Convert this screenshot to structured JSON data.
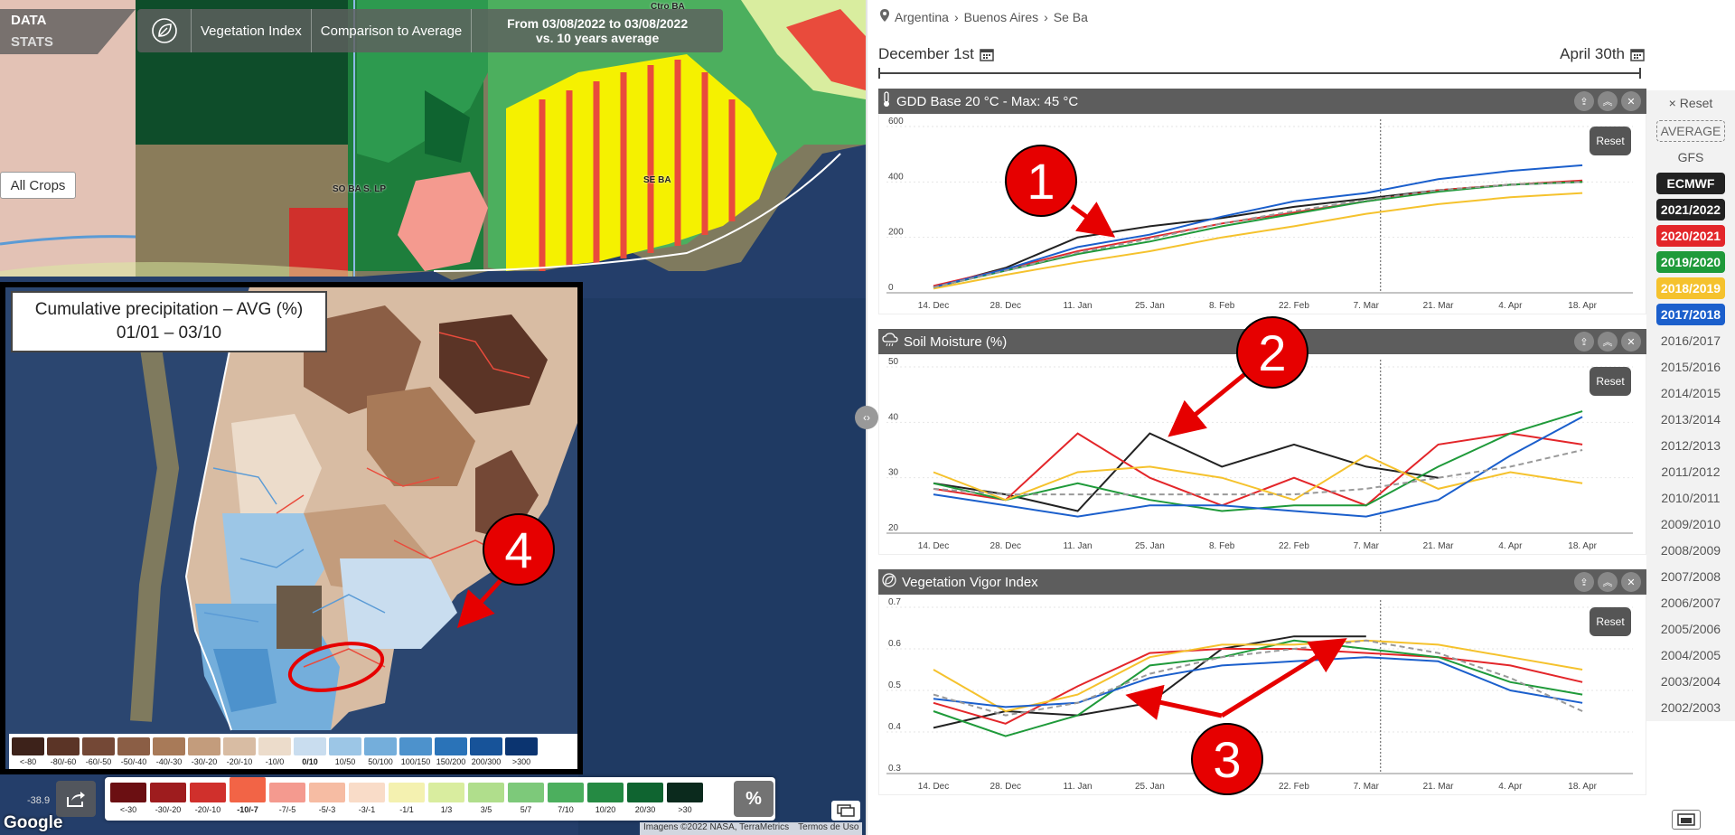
{
  "app": {
    "logo_top": "DATA",
    "logo_bottom": "STATS"
  },
  "topbar": {
    "icon": "leaf-icon",
    "items": [
      "Vegetation Index",
      "Comparison to Average"
    ],
    "range_line1": "From 03/08/2022 to 03/08/2022",
    "range_line2": "vs. 10 years average"
  },
  "map": {
    "crop_selector": "All Crops",
    "region_labels": [
      "SO BA S. LP",
      "SE BA",
      "Ctro BA"
    ],
    "coord": "-38.9",
    "google": "Google",
    "attribution": [
      "Imagens ©2022 NASA, TerraMetrics",
      "Termos de Uso"
    ],
    "legend": [
      {
        "label": "<-30",
        "color": "#6b0f12"
      },
      {
        "label": "-30/-20",
        "color": "#9e1c1e"
      },
      {
        "label": "-20/-10",
        "color": "#d0302c"
      },
      {
        "label": "-10/-7",
        "color": "#f26446",
        "selected": true
      },
      {
        "label": "-7/-5",
        "color": "#f49a8f"
      },
      {
        "label": "-5/-3",
        "color": "#f6bca3"
      },
      {
        "label": "-3/-1",
        "color": "#f9dcc8"
      },
      {
        "label": "-1/1",
        "color": "#f4f1b0"
      },
      {
        "label": "1/3",
        "color": "#d9ed9f"
      },
      {
        "label": "3/5",
        "color": "#b0de8c"
      },
      {
        "label": "5/7",
        "color": "#7dc97a"
      },
      {
        "label": "7/10",
        "color": "#4caf5e"
      },
      {
        "label": "10/20",
        "color": "#258a43"
      },
      {
        "label": "20/30",
        "color": "#0f6430"
      },
      {
        "label": ">30",
        "color": "#0b2a1d"
      }
    ],
    "percent_button": "%"
  },
  "inset": {
    "title_line1": "Cumulative precipitation – AVG (%)",
    "title_line2": "01/01 – 03/10",
    "legend": [
      {
        "label": "<-80",
        "color": "#3d221a"
      },
      {
        "label": "-80/-60",
        "color": "#5b3426"
      },
      {
        "label": "-60/-50",
        "color": "#744836"
      },
      {
        "label": "-50/-40",
        "color": "#8b5e45"
      },
      {
        "label": "-40/-30",
        "color": "#a87a58"
      },
      {
        "label": "-30/-20",
        "color": "#c39c7c"
      },
      {
        "label": "-20/-10",
        "color": "#d8bca3"
      },
      {
        "label": "-10/0",
        "color": "#ecdccb"
      },
      {
        "label": "0/10",
        "color": "#c9ddef",
        "selected": true
      },
      {
        "label": "10/50",
        "color": "#9cc6e6"
      },
      {
        "label": "50/100",
        "color": "#74aedb"
      },
      {
        "label": "100/150",
        "color": "#4d92cc"
      },
      {
        "label": "150/200",
        "color": "#2a73b8"
      },
      {
        "label": "200/300",
        "color": "#175399"
      },
      {
        "label": ">300",
        "color": "#0b3470"
      }
    ]
  },
  "right": {
    "breadcrumb": [
      "Argentina",
      "Buenos Aires",
      "Se Ba"
    ],
    "date_start": "December 1st",
    "date_end": "April 30th",
    "reset_label": "Reset",
    "panels": [
      {
        "title": "GDD Base 20 °C - Max: 45 °C",
        "icon": "thermometer-icon"
      },
      {
        "title": "Soil Moisture (%)",
        "icon": "rain-cloud-icon"
      },
      {
        "title": "Vegetation Vigor Index",
        "icon": "leaf-icon"
      }
    ],
    "season_reset": "Reset",
    "seasons": [
      {
        "label": "AVERAGE",
        "style": "dashed"
      },
      {
        "label": "GFS",
        "style": "plain"
      },
      {
        "label": "ECMWF",
        "style": "on",
        "color": "#222222"
      },
      {
        "label": "2021/2022",
        "style": "on",
        "color": "#222222"
      },
      {
        "label": "2020/2021",
        "style": "on",
        "color": "#e3262a"
      },
      {
        "label": "2019/2020",
        "style": "on",
        "color": "#1f9a3a"
      },
      {
        "label": "2018/2019",
        "style": "on",
        "color": "#f5c22d"
      },
      {
        "label": "2017/2018",
        "style": "on",
        "color": "#1b5fcc"
      },
      {
        "label": "2016/2017",
        "style": "plain"
      },
      {
        "label": "2015/2016",
        "style": "plain"
      },
      {
        "label": "2014/2015",
        "style": "plain"
      },
      {
        "label": "2013/2014",
        "style": "plain"
      },
      {
        "label": "2012/2013",
        "style": "plain"
      },
      {
        "label": "2011/2012",
        "style": "plain"
      },
      {
        "label": "2010/2011",
        "style": "plain"
      },
      {
        "label": "2009/2010",
        "style": "plain"
      },
      {
        "label": "2008/2009",
        "style": "plain"
      },
      {
        "label": "2007/2008",
        "style": "plain"
      },
      {
        "label": "2006/2007",
        "style": "plain"
      },
      {
        "label": "2005/2006",
        "style": "plain"
      },
      {
        "label": "2004/2005",
        "style": "plain"
      },
      {
        "label": "2003/2004",
        "style": "plain"
      },
      {
        "label": "2002/2003",
        "style": "plain"
      }
    ]
  },
  "annotations": [
    "1",
    "2",
    "3",
    "4"
  ],
  "chart_data": [
    {
      "type": "line",
      "title": "GDD Base 20 °C - Max: 45 °C",
      "x": [
        "14. Dec",
        "28. Dec",
        "11. Jan",
        "25. Jan",
        "8. Feb",
        "22. Feb",
        "7. Mar",
        "21. Mar",
        "4. Apr",
        "18. Apr"
      ],
      "ylim": [
        0,
        600
      ],
      "yticks": [
        "0",
        "200",
        "400",
        "600"
      ],
      "today_marker": "7. Mar",
      "series": [
        {
          "name": "2021/2022",
          "color": "#222222",
          "values": [
            20,
            90,
            200,
            240,
            270,
            310,
            340,
            370,
            390,
            400
          ]
        },
        {
          "name": "2020/2021",
          "color": "#e3262a",
          "values": [
            25,
            85,
            150,
            200,
            250,
            290,
            330,
            370,
            390,
            405
          ]
        },
        {
          "name": "2019/2020",
          "color": "#1f9a3a",
          "values": [
            20,
            80,
            140,
            185,
            240,
            285,
            330,
            365,
            390,
            400
          ]
        },
        {
          "name": "2018/2019",
          "color": "#f5c22d",
          "values": [
            15,
            65,
            110,
            150,
            200,
            240,
            285,
            320,
            345,
            360
          ]
        },
        {
          "name": "2017/2018",
          "color": "#1b5fcc",
          "values": [
            20,
            85,
            165,
            210,
            275,
            330,
            360,
            410,
            440,
            460
          ]
        },
        {
          "name": "AVERAGE",
          "color": "#999999",
          "dashed": true,
          "values": [
            20,
            80,
            145,
            195,
            250,
            295,
            335,
            370,
            390,
            400
          ]
        }
      ]
    },
    {
      "type": "line",
      "title": "Soil Moisture (%)",
      "x": [
        "14. Dec",
        "28. Dec",
        "11. Jan",
        "25. Jan",
        "8. Feb",
        "22. Feb",
        "7. Mar",
        "21. Mar",
        "4. Apr",
        "18. Apr"
      ],
      "ylim": [
        20,
        50
      ],
      "yticks": [
        "20",
        "30",
        "40",
        "50"
      ],
      "today_marker": "7. Mar",
      "series": [
        {
          "name": "2021/2022",
          "color": "#222222",
          "values": [
            29,
            27,
            24,
            38,
            32,
            36,
            32,
            30,
            null,
            null
          ]
        },
        {
          "name": "2020/2021",
          "color": "#e3262a",
          "values": [
            28,
            26,
            38,
            30,
            25,
            30,
            25,
            36,
            38,
            36
          ]
        },
        {
          "name": "2019/2020",
          "color": "#1f9a3a",
          "values": [
            29,
            26,
            29,
            26,
            24,
            25,
            25,
            32,
            38,
            42
          ]
        },
        {
          "name": "2018/2019",
          "color": "#f5c22d",
          "values": [
            31,
            26,
            31,
            32,
            30,
            26,
            34,
            28,
            31,
            29
          ]
        },
        {
          "name": "2017/2018",
          "color": "#1b5fcc",
          "values": [
            27,
            25,
            23,
            25,
            25,
            24,
            23,
            26,
            34,
            41
          ]
        },
        {
          "name": "AVERAGE",
          "color": "#999999",
          "dashed": true,
          "values": [
            28,
            27,
            27,
            27,
            27,
            27,
            28,
            30,
            32,
            35
          ]
        }
      ]
    },
    {
      "type": "line",
      "title": "Vegetation Vigor Index",
      "x": [
        "14. Dec",
        "28. Dec",
        "11. Jan",
        "25. Jan",
        "8. Feb",
        "22. Feb",
        "7. Mar",
        "21. Mar",
        "4. Apr",
        "18. Apr"
      ],
      "ylim": [
        0.3,
        0.7
      ],
      "yticks": [
        "0.3",
        "0.4",
        "0.5",
        "0.6",
        "0.7"
      ],
      "today_marker": "7. Mar",
      "series": [
        {
          "name": "2021/2022",
          "color": "#222222",
          "values": [
            0.41,
            0.45,
            0.44,
            0.47,
            0.6,
            0.63,
            0.63,
            null,
            null,
            null
          ]
        },
        {
          "name": "2020/2021",
          "color": "#e3262a",
          "values": [
            0.47,
            0.42,
            0.51,
            0.59,
            0.6,
            0.6,
            0.59,
            0.58,
            0.56,
            0.52
          ]
        },
        {
          "name": "2019/2020",
          "color": "#1f9a3a",
          "values": [
            0.45,
            0.39,
            0.44,
            0.56,
            0.58,
            0.62,
            0.6,
            0.58,
            0.52,
            0.49
          ]
        },
        {
          "name": "2018/2019",
          "color": "#f5c22d",
          "values": [
            0.55,
            0.45,
            0.49,
            0.58,
            0.61,
            0.61,
            0.62,
            0.61,
            0.58,
            0.55
          ]
        },
        {
          "name": "2017/2018",
          "color": "#1b5fcc",
          "values": [
            0.48,
            0.46,
            0.47,
            0.53,
            0.56,
            0.57,
            0.58,
            0.57,
            0.5,
            0.47
          ]
        },
        {
          "name": "AVERAGE",
          "color": "#999999",
          "dashed": true,
          "values": [
            0.49,
            0.44,
            0.47,
            0.54,
            0.58,
            0.6,
            0.62,
            0.59,
            0.53,
            0.45
          ]
        }
      ]
    }
  ]
}
